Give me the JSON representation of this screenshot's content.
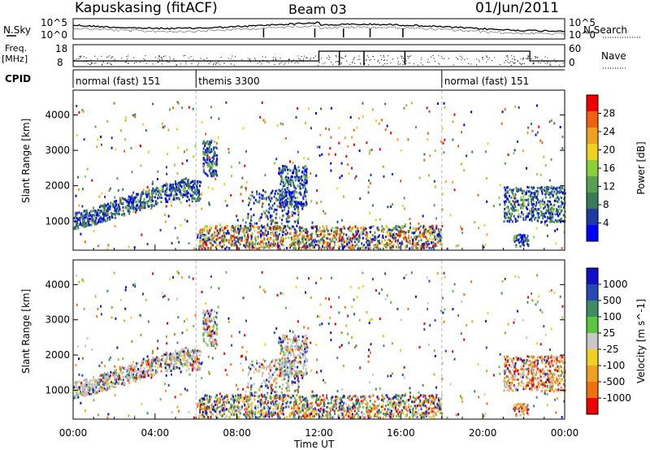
{
  "header": {
    "title": "Kapuskasing (fitACF)",
    "beam": "Beam 03",
    "date": "01/Jun/2011"
  },
  "side_labels": {
    "nsky": "N.Sky",
    "nsearch": "N.Search",
    "freq": "Freq.",
    "freq_unit": "[MHz]",
    "nave": "Nave",
    "cpid": "CPID"
  },
  "noise_axis": {
    "top": "10^5",
    "bottom": "10^0"
  },
  "freq_axis": {
    "left_ticks": [
      "18",
      "8"
    ],
    "right_ticks": [
      "60",
      "0"
    ]
  },
  "cpid_modes": [
    {
      "label": "normal (fast) 151",
      "start_hr": 0
    },
    {
      "label": "themis 3300",
      "start_hr": 6
    },
    {
      "label": "normal (fast) 151",
      "start_hr": 18
    }
  ],
  "colors": {
    "power_scale": [
      "#0000ff",
      "#1e3ca0",
      "#3a7a5a",
      "#5aa050",
      "#8ccf3c",
      "#f0d020",
      "#f0a020",
      "#f06010",
      "#f00000"
    ],
    "velocity_scale": [
      "#1010c8",
      "#2848b4",
      "#3c8c64",
      "#5ac83c",
      "#c8c8c8",
      "#f0d020",
      "#f0a020",
      "#f07010",
      "#f00000"
    ],
    "ground_scatter": "#bebebe"
  },
  "chart_data": [
    {
      "type": "heatmap",
      "panel": "power",
      "ylabel": "Slant Range [km]",
      "xlabel": "",
      "y_ticks": [
        1000,
        2000,
        3000,
        4000
      ],
      "ylim": [
        180,
        4700
      ],
      "colorbar": {
        "label": "Power [dB]",
        "ticks": [
          "4",
          "8",
          "12",
          "16",
          "20",
          "24",
          "28"
        ],
        "range": [
          0,
          30
        ]
      }
    },
    {
      "type": "heatmap",
      "panel": "velocity",
      "ylabel": "Slant Range [km]",
      "xlabel": "Time UT",
      "y_ticks": [
        1000,
        2000,
        3000,
        4000
      ],
      "ylim": [
        180,
        4700
      ],
      "x_ticks": [
        "00:00",
        "04:00",
        "08:00",
        "12:00",
        "16:00",
        "20:00",
        "00:00"
      ],
      "xlim_hours": [
        0,
        24
      ],
      "colorbar": {
        "label": "Velocity [m s^-1]",
        "ticks": [
          "1000",
          "500",
          "100",
          "25",
          "-25",
          "-100",
          "-500",
          "-1000"
        ]
      }
    }
  ]
}
